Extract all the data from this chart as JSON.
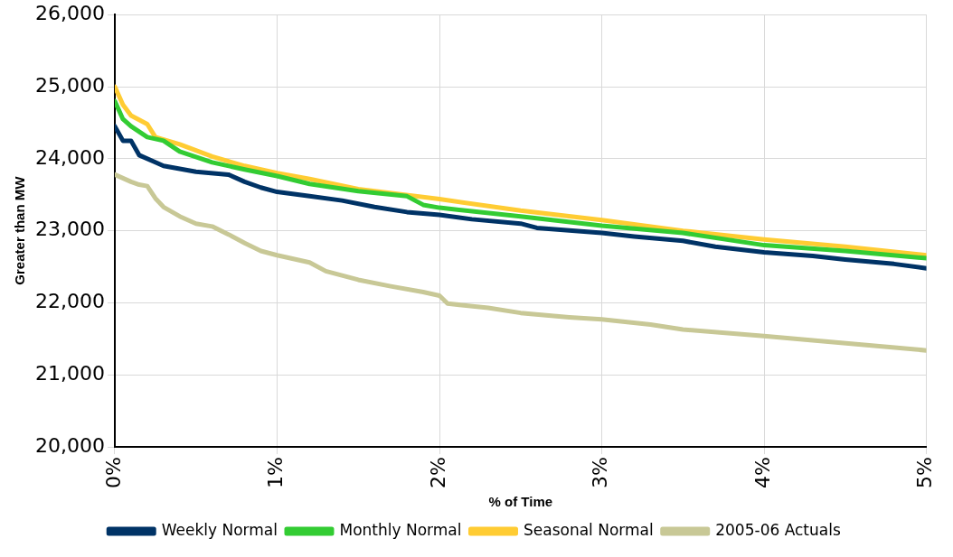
{
  "chart_data": {
    "type": "line",
    "xlabel": "% of Time",
    "ylabel": "Greater than MW",
    "xlim": [
      0,
      5
    ],
    "xticks": [
      {
        "value": 0,
        "label": "0%"
      },
      {
        "value": 1,
        "label": "1%"
      },
      {
        "value": 2,
        "label": "2%"
      },
      {
        "value": 3,
        "label": "3%"
      },
      {
        "value": 4,
        "label": "4%"
      },
      {
        "value": 5,
        "label": "5%"
      }
    ],
    "ylim": [
      20000,
      26000
    ],
    "yticks": [
      {
        "value": 20000,
        "label": "20,000"
      },
      {
        "value": 21000,
        "label": "21,000"
      },
      {
        "value": 22000,
        "label": "22,000"
      },
      {
        "value": 23000,
        "label": "23,000"
      },
      {
        "value": 24000,
        "label": "24,000"
      },
      {
        "value": 25000,
        "label": "25,000"
      },
      {
        "value": 26000,
        "label": "26,000"
      }
    ],
    "grid": true,
    "legend": "bottom",
    "marker": "none",
    "line_style": "solid",
    "series": [
      {
        "name": "Weekly Normal",
        "color": "#003366",
        "x": [
          0,
          0.05,
          0.1,
          0.15,
          0.25,
          0.3,
          0.5,
          0.7,
          0.8,
          0.9,
          1.0,
          1.2,
          1.4,
          1.6,
          1.8,
          2.0,
          2.2,
          2.5,
          2.6,
          3.0,
          3.2,
          3.5,
          3.7,
          4.0,
          4.3,
          4.5,
          4.8,
          5.0
        ],
        "values": [
          24450,
          24250,
          24250,
          24050,
          23950,
          23900,
          23820,
          23780,
          23680,
          23600,
          23540,
          23480,
          23420,
          23330,
          23260,
          23220,
          23160,
          23100,
          23040,
          22970,
          22920,
          22860,
          22780,
          22700,
          22650,
          22600,
          22540,
          22480
        ]
      },
      {
        "name": "Monthly Normal",
        "color": "#33cc33",
        "x": [
          0,
          0.05,
          0.1,
          0.2,
          0.3,
          0.4,
          0.6,
          0.8,
          1.0,
          1.2,
          1.5,
          1.8,
          1.9,
          2.0,
          2.5,
          3.0,
          3.5,
          4.0,
          4.5,
          5.0
        ],
        "values": [
          24800,
          24550,
          24450,
          24300,
          24250,
          24100,
          23950,
          23850,
          23760,
          23650,
          23550,
          23480,
          23360,
          23320,
          23200,
          23070,
          22970,
          22800,
          22720,
          22620
        ]
      },
      {
        "name": "Seasonal Normal",
        "color": "#ffcc33",
        "x": [
          0,
          0.05,
          0.1,
          0.2,
          0.25,
          0.4,
          0.6,
          0.8,
          1.0,
          1.2,
          1.5,
          2.0,
          2.5,
          3.0,
          3.5,
          4.0,
          4.5,
          5.0
        ],
        "values": [
          25000,
          24750,
          24600,
          24480,
          24300,
          24200,
          24030,
          23900,
          23800,
          23720,
          23580,
          23440,
          23280,
          23150,
          23000,
          22880,
          22780,
          22660
        ]
      },
      {
        "name": "2005-06 Actuals",
        "color": "#c8c896",
        "x": [
          0,
          0.1,
          0.15,
          0.2,
          0.25,
          0.3,
          0.4,
          0.5,
          0.6,
          0.7,
          0.8,
          0.9,
          1.0,
          1.2,
          1.3,
          1.5,
          1.7,
          1.9,
          2.0,
          2.05,
          2.3,
          2.5,
          2.8,
          3.0,
          3.3,
          3.5,
          4.0,
          4.3,
          4.6,
          5.0
        ],
        "values": [
          23780,
          23680,
          23640,
          23620,
          23450,
          23330,
          23200,
          23100,
          23060,
          22950,
          22830,
          22720,
          22660,
          22560,
          22440,
          22320,
          22230,
          22150,
          22100,
          21990,
          21930,
          21860,
          21800,
          21770,
          21700,
          21630,
          21540,
          21480,
          21420,
          21340
        ]
      }
    ]
  }
}
